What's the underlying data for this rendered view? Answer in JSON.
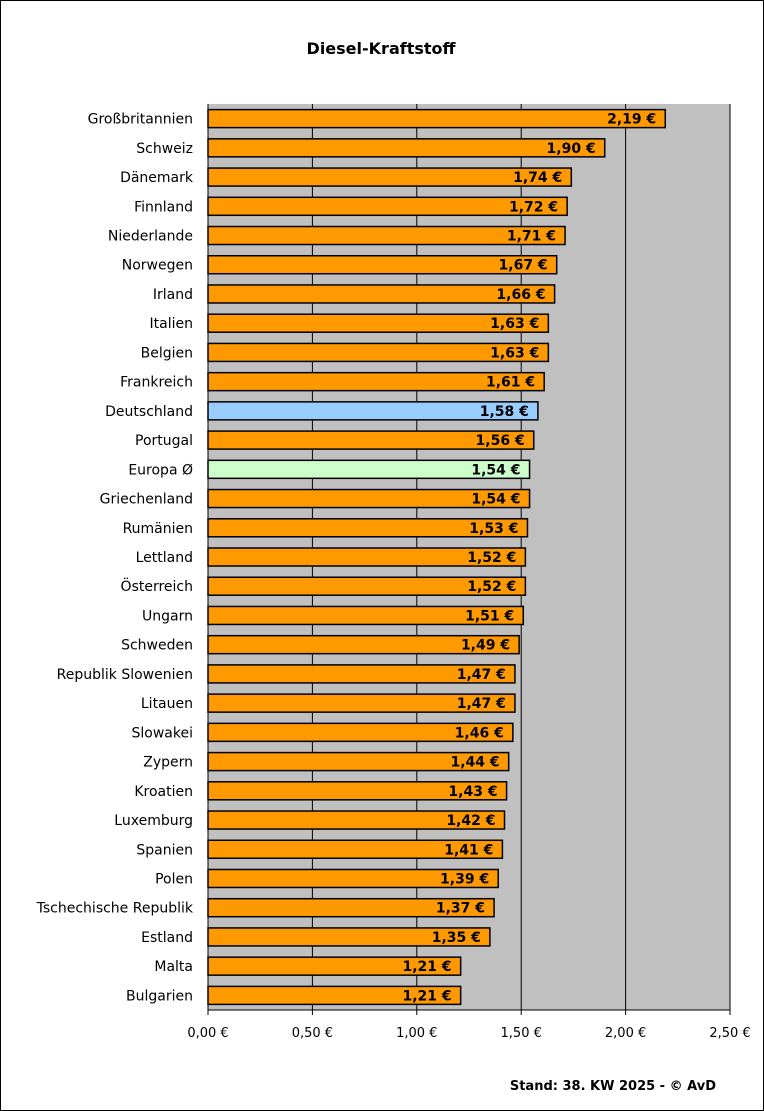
{
  "chart_data": {
    "type": "bar",
    "orientation": "horizontal",
    "title": "Diesel-Kraftstoff",
    "footer": "Stand: 38. KW 2025 - © AvD",
    "categories": [
      "Großbritannien",
      "Schweiz",
      "Dänemark",
      "Finnland",
      "Niederlande",
      "Norwegen",
      "Irland",
      "Italien",
      "Belgien",
      "Frankreich",
      "Deutschland",
      "Portugal",
      "Europa Ø",
      "Griechenland",
      "Rumänien",
      "Lettland",
      "Österreich",
      "Ungarn",
      "Schweden",
      "Republik Slowenien",
      "Litauen",
      "Slowakei",
      "Zypern",
      "Kroatien",
      "Luxemburg",
      "Spanien",
      "Polen",
      "Tschechische Republik",
      "Estland",
      "Malta",
      "Bulgarien"
    ],
    "values": [
      2.19,
      1.9,
      1.74,
      1.72,
      1.71,
      1.67,
      1.66,
      1.63,
      1.63,
      1.61,
      1.58,
      1.56,
      1.54,
      1.54,
      1.53,
      1.52,
      1.52,
      1.51,
      1.49,
      1.47,
      1.47,
      1.46,
      1.44,
      1.43,
      1.42,
      1.41,
      1.39,
      1.37,
      1.35,
      1.21,
      1.21
    ],
    "data_labels": [
      "2,19 €",
      "1,90 €",
      "1,74 €",
      "1,72 €",
      "1,71 €",
      "1,67 €",
      "1,66 €",
      "1,63 €",
      "1,63 €",
      "1,61 €",
      "1,58 €",
      "1,56 €",
      "1,54 €",
      "1,54 €",
      "1,53 €",
      "1,52 €",
      "1,52 €",
      "1,51 €",
      "1,49 €",
      "1,47 €",
      "1,47 €",
      "1,46 €",
      "1,44 €",
      "1,43 €",
      "1,42 €",
      "1,41 €",
      "1,39 €",
      "1,37 €",
      "1,35 €",
      "1,21 €",
      "1,21 €"
    ],
    "xlim": [
      0,
      2.5
    ],
    "x_ticks": [
      0,
      0.5,
      1.0,
      1.5,
      2.0,
      2.5
    ],
    "x_tick_labels": [
      "0,00 €",
      "0,50 €",
      "1,00 €",
      "1,50 €",
      "2,00 €",
      "2,50 €"
    ],
    "grid": "vertical",
    "legend": "none",
    "colors": {
      "bar": "#ff9900",
      "highlight_germany": "#99ccff",
      "highlight_europe": "#ccffcc",
      "plot_background": "#c0c0c0",
      "bar_border": "#000000",
      "gridline": "#000000"
    },
    "highlights": {
      "Deutschland": "highlight_germany",
      "Europa Ø": "highlight_europe"
    }
  }
}
